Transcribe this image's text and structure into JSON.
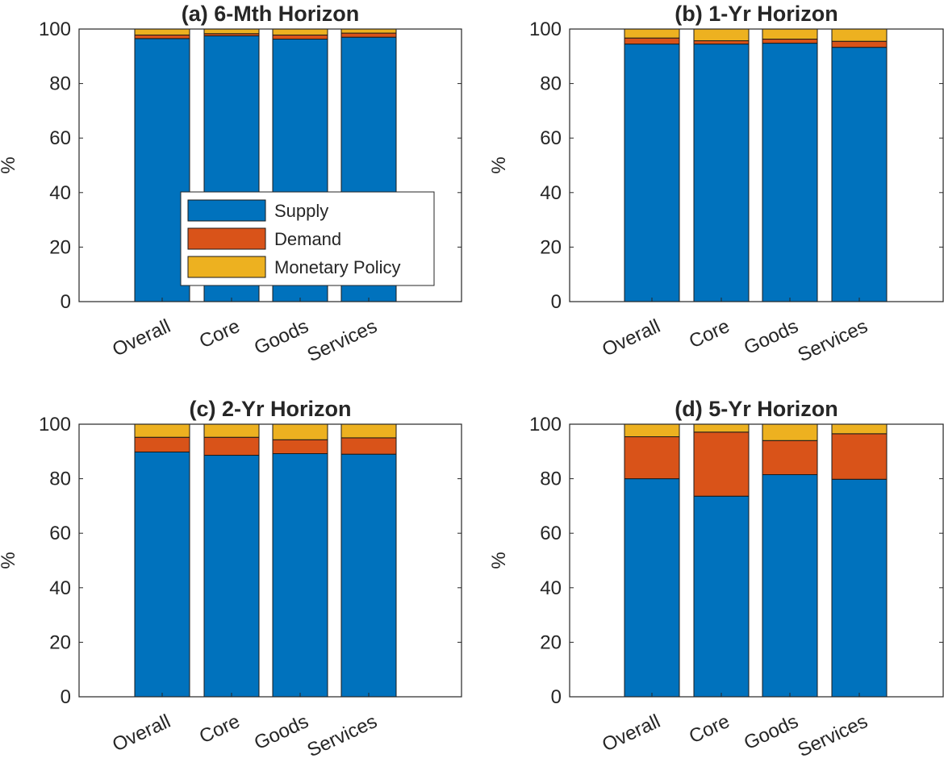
{
  "colors": {
    "Supply": "#0072BD",
    "Demand": "#D95319",
    "Monetary Policy": "#EDB120"
  },
  "legend": {
    "placement": "inside lower-right of panel (a)",
    "items": [
      "Supply",
      "Demand",
      "Monetary Policy"
    ]
  },
  "chart_data": [
    {
      "type": "bar",
      "stacked": true,
      "title": "(a) 6-Mth Horizon",
      "ylabel": "%",
      "ylim": [
        0,
        100
      ],
      "yticks": [
        "0",
        "20",
        "40",
        "60",
        "80",
        "100"
      ],
      "grid": false,
      "categories": [
        "Overall",
        "Core",
        "Goods",
        "Services"
      ],
      "series": [
        {
          "name": "Supply",
          "values": [
            96.5,
            97.5,
            96.3,
            97.0
          ]
        },
        {
          "name": "Demand",
          "values": [
            1.3,
            0.8,
            1.5,
            1.5
          ]
        },
        {
          "name": "Monetary Policy",
          "values": [
            2.2,
            1.7,
            2.2,
            1.5
          ]
        }
      ]
    },
    {
      "type": "bar",
      "stacked": true,
      "title": "(b) 1-Yr Horizon",
      "ylabel": "%",
      "ylim": [
        0,
        100
      ],
      "yticks": [
        "0",
        "20",
        "40",
        "60",
        "80",
        "100"
      ],
      "grid": false,
      "categories": [
        "Overall",
        "Core",
        "Goods",
        "Services"
      ],
      "series": [
        {
          "name": "Supply",
          "values": [
            94.5,
            94.5,
            94.8,
            93.3
          ]
        },
        {
          "name": "Demand",
          "values": [
            2.2,
            1.2,
            1.5,
            2.2
          ]
        },
        {
          "name": "Monetary Policy",
          "values": [
            3.3,
            4.3,
            3.7,
            4.5
          ]
        }
      ]
    },
    {
      "type": "bar",
      "stacked": true,
      "title": "(c) 2-Yr Horizon",
      "ylabel": "%",
      "ylim": [
        0,
        100
      ],
      "yticks": [
        "0",
        "20",
        "40",
        "60",
        "80",
        "100"
      ],
      "grid": false,
      "categories": [
        "Overall",
        "Core",
        "Goods",
        "Services"
      ],
      "series": [
        {
          "name": "Supply",
          "values": [
            89.8,
            88.6,
            89.2,
            89.0
          ]
        },
        {
          "name": "Demand",
          "values": [
            5.4,
            6.6,
            5.1,
            6.0
          ]
        },
        {
          "name": "Monetary Policy",
          "values": [
            4.8,
            4.8,
            5.7,
            5.0
          ]
        }
      ]
    },
    {
      "type": "bar",
      "stacked": true,
      "title": "(d) 5-Yr Horizon",
      "ylabel": "%",
      "ylim": [
        0,
        100
      ],
      "yticks": [
        "0",
        "20",
        "40",
        "60",
        "80",
        "100"
      ],
      "grid": false,
      "categories": [
        "Overall",
        "Core",
        "Goods",
        "Services"
      ],
      "series": [
        {
          "name": "Supply",
          "values": [
            80.0,
            73.6,
            81.5,
            79.8
          ]
        },
        {
          "name": "Demand",
          "values": [
            15.4,
            23.5,
            12.5,
            16.7
          ]
        },
        {
          "name": "Monetary Policy",
          "values": [
            4.6,
            2.9,
            6.0,
            3.5
          ]
        }
      ]
    }
  ]
}
